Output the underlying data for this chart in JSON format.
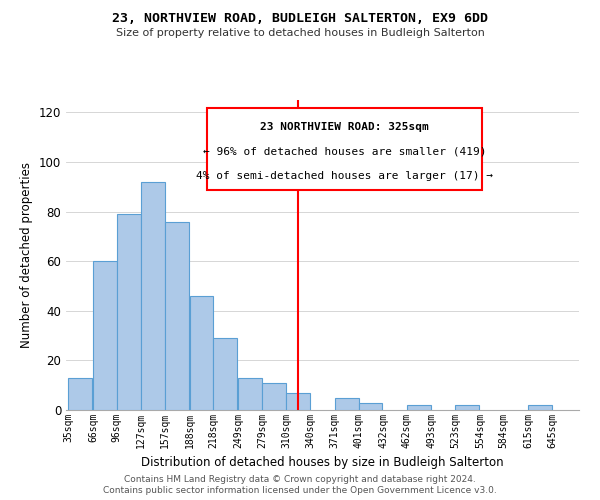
{
  "title": "23, NORTHVIEW ROAD, BUDLEIGH SALTERTON, EX9 6DD",
  "subtitle": "Size of property relative to detached houses in Budleigh Salterton",
  "xlabel": "Distribution of detached houses by size in Budleigh Salterton",
  "ylabel": "Number of detached properties",
  "footer_line1": "Contains HM Land Registry data © Crown copyright and database right 2024.",
  "footer_line2": "Contains public sector information licensed under the Open Government Licence v3.0.",
  "bin_labels": [
    "35sqm",
    "66sqm",
    "96sqm",
    "127sqm",
    "157sqm",
    "188sqm",
    "218sqm",
    "249sqm",
    "279sqm",
    "310sqm",
    "340sqm",
    "371sqm",
    "401sqm",
    "432sqm",
    "462sqm",
    "493sqm",
    "523sqm",
    "554sqm",
    "584sqm",
    "615sqm",
    "645sqm"
  ],
  "bar_values": [
    13,
    60,
    79,
    92,
    76,
    46,
    29,
    13,
    11,
    7,
    0,
    5,
    3,
    0,
    2,
    0,
    2,
    0,
    0,
    2,
    0
  ],
  "bar_color": "#adc9e8",
  "bar_edge_color": "#5a9fd4",
  "vline_x": 325,
  "annotation_text_line1": "23 NORTHVIEW ROAD: 325sqm",
  "annotation_text_line2": "← 96% of detached houses are smaller (419)",
  "annotation_text_line3": "4% of semi-detached houses are larger (17) →",
  "vline_color": "red",
  "box_edge_color": "red",
  "ylim": [
    0,
    125
  ],
  "yticks": [
    0,
    20,
    40,
    60,
    80,
    100,
    120
  ],
  "bin_starts": [
    35,
    66,
    96,
    127,
    157,
    188,
    218,
    249,
    279,
    310,
    340,
    371,
    401,
    432,
    462,
    493,
    523,
    554,
    584,
    615,
    645
  ],
  "bin_width": 31
}
